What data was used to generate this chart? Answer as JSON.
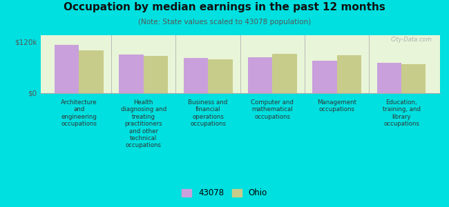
{
  "title": "Occupation by median earnings in the past 12 months",
  "subtitle": "(Note: State values scaled to 43078 population)",
  "categories": [
    "Architecture\nand\nengineering\noccupations",
    "Health\ndiagnosing and\ntreating\npractitioners\nand other\ntechnical\noccupations",
    "Business and\nfinancial\noperations\noccupations",
    "Computer and\nmathematical\noccupations",
    "Management\noccupations",
    "Education,\ntraining, and\nlibrary\noccupations"
  ],
  "values_43078": [
    113000,
    90000,
    82000,
    83000,
    75000,
    70000
  ],
  "values_ohio": [
    100000,
    87000,
    79000,
    91000,
    88000,
    68000
  ],
  "color_43078": "#c9a0dc",
  "color_ohio": "#c8cc8a",
  "yticks": [
    0,
    120000
  ],
  "ytick_labels": [
    "$0",
    "$120k"
  ],
  "plot_bg": "#e8f5d8",
  "outer_bg": "#00e0e0",
  "legend_labels": [
    "43078",
    "Ohio"
  ],
  "watermark": "City-Data.com",
  "ylim": [
    0,
    135000
  ]
}
